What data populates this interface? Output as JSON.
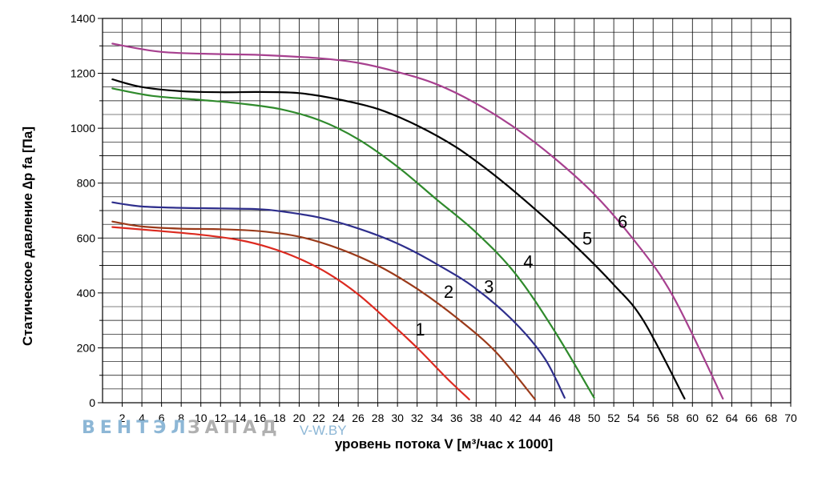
{
  "chart_data": {
    "type": "line",
    "xlabel": "уровень потока  V [м³/час х 1000]",
    "ylabel": "Статическое давление  ∆p fa [Па]",
    "xlim": [
      0,
      70
    ],
    "ylim": [
      0,
      1400
    ],
    "x_ticks": [
      "2",
      "4",
      "6",
      "8",
      "10",
      "12",
      "14",
      "16",
      "18",
      "20",
      "22",
      "24",
      "26",
      "28",
      "30",
      "32",
      "34",
      "36",
      "38",
      "40",
      "42",
      "44",
      "46",
      "48",
      "50",
      "52",
      "54",
      "56",
      "58",
      "60",
      "62",
      "64",
      "66",
      "68",
      "70"
    ],
    "y_ticks": [
      "0",
      "200",
      "400",
      "600",
      "800",
      "1000",
      "1200",
      "1400"
    ],
    "grid": true,
    "series": [
      {
        "name": "1",
        "color": "#dc2a20",
        "label_at": [
          32.3,
          268
        ],
        "points": [
          [
            1,
            640
          ],
          [
            5,
            628
          ],
          [
            10,
            612
          ],
          [
            14,
            592
          ],
          [
            17,
            565
          ],
          [
            20,
            525
          ],
          [
            23,
            470
          ],
          [
            26,
            395
          ],
          [
            29,
            300
          ],
          [
            32,
            200
          ],
          [
            35,
            90
          ],
          [
            37.3,
            12
          ]
        ]
      },
      {
        "name": "2",
        "color": "#9a3a1a",
        "label_at": [
          35.2,
          405
        ],
        "points": [
          [
            1,
            660
          ],
          [
            4,
            642
          ],
          [
            8,
            634
          ],
          [
            12,
            632
          ],
          [
            16,
            625
          ],
          [
            20,
            605
          ],
          [
            24,
            562
          ],
          [
            28,
            500
          ],
          [
            32,
            415
          ],
          [
            36,
            310
          ],
          [
            40,
            185
          ],
          [
            44,
            12
          ]
        ]
      },
      {
        "name": "3",
        "color": "#2e2e8c",
        "label_at": [
          39.3,
          425
        ],
        "points": [
          [
            1,
            730
          ],
          [
            4,
            715
          ],
          [
            8,
            710
          ],
          [
            12,
            708
          ],
          [
            16,
            705
          ],
          [
            18,
            698
          ],
          [
            22,
            675
          ],
          [
            26,
            635
          ],
          [
            30,
            580
          ],
          [
            34,
            505
          ],
          [
            38,
            415
          ],
          [
            42,
            290
          ],
          [
            45,
            160
          ],
          [
            47,
            18
          ]
        ]
      },
      {
        "name": "4",
        "color": "#2f8a2c",
        "label_at": [
          43.3,
          515
        ],
        "points": [
          [
            1,
            1145
          ],
          [
            5,
            1118
          ],
          [
            10,
            1103
          ],
          [
            14,
            1090
          ],
          [
            18,
            1070
          ],
          [
            22,
            1030
          ],
          [
            26,
            960
          ],
          [
            30,
            860
          ],
          [
            34,
            740
          ],
          [
            38,
            620
          ],
          [
            42,
            470
          ],
          [
            46,
            260
          ],
          [
            50,
            18
          ]
        ]
      },
      {
        "name": "5",
        "color": "#000000",
        "label_at": [
          49.3,
          600
        ],
        "points": [
          [
            1,
            1178
          ],
          [
            4,
            1150
          ],
          [
            8,
            1135
          ],
          [
            12,
            1131
          ],
          [
            16,
            1132
          ],
          [
            20,
            1128
          ],
          [
            24,
            1105
          ],
          [
            28,
            1070
          ],
          [
            32,
            1010
          ],
          [
            36,
            930
          ],
          [
            40,
            825
          ],
          [
            44,
            705
          ],
          [
            48,
            575
          ],
          [
            52,
            430
          ],
          [
            55,
            300
          ],
          [
            59.2,
            15
          ]
        ]
      },
      {
        "name": "6",
        "color": "#a7408f",
        "label_at": [
          52.9,
          660
        ],
        "points": [
          [
            1,
            1308
          ],
          [
            6,
            1278
          ],
          [
            12,
            1270
          ],
          [
            16,
            1267
          ],
          [
            22,
            1255
          ],
          [
            26,
            1238
          ],
          [
            30,
            1205
          ],
          [
            34,
            1160
          ],
          [
            38,
            1090
          ],
          [
            42,
            1000
          ],
          [
            46,
            890
          ],
          [
            50,
            760
          ],
          [
            54,
            595
          ],
          [
            58,
            390
          ],
          [
            63.1,
            15
          ]
        ]
      }
    ]
  },
  "watermark": {
    "part1": "ВЕНТЭЛ",
    "part2": "ЗАПАД",
    "site": "V-W.BY",
    "color1": "#8db7d6",
    "color2": "#b0b0b0"
  }
}
